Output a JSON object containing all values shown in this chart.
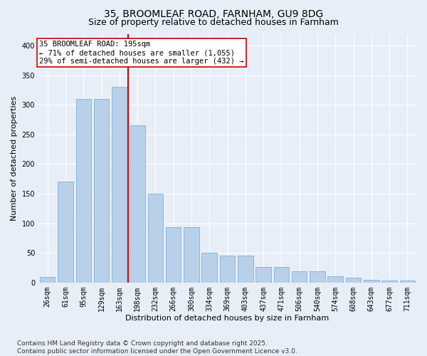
{
  "title1": "35, BROOMLEAF ROAD, FARNHAM, GU9 8DG",
  "title2": "Size of property relative to detached houses in Farnham",
  "xlabel": "Distribution of detached houses by size in Farnham",
  "ylabel": "Number of detached properties",
  "bar_color": "#b8d0e8",
  "bar_edge_color": "#6aaad4",
  "categories": [
    "26sqm",
    "61sqm",
    "95sqm",
    "129sqm",
    "163sqm",
    "198sqm",
    "232sqm",
    "266sqm",
    "300sqm",
    "334sqm",
    "369sqm",
    "403sqm",
    "437sqm",
    "471sqm",
    "506sqm",
    "540sqm",
    "574sqm",
    "608sqm",
    "643sqm",
    "677sqm",
    "711sqm"
  ],
  "values": [
    10,
    170,
    310,
    310,
    330,
    265,
    150,
    93,
    93,
    50,
    45,
    45,
    26,
    26,
    19,
    19,
    11,
    8,
    5,
    3,
    3
  ],
  "vline_index": 4.5,
  "vline_color": "#cc0000",
  "annotation_text": "35 BROOMLEAF ROAD: 195sqm\n← 71% of detached houses are smaller (1,055)\n29% of semi-detached houses are larger (432) →",
  "annotation_box_color": "#ffffff",
  "annotation_box_edge": "#cc0000",
  "background_color": "#e8eef7",
  "plot_bg_color": "#e8eef7",
  "grid_color": "#ffffff",
  "footer_text": "Contains HM Land Registry data © Crown copyright and database right 2025.\nContains public sector information licensed under the Open Government Licence v3.0.",
  "ylim": [
    0,
    420
  ],
  "yticks": [
    0,
    50,
    100,
    150,
    200,
    250,
    300,
    350,
    400
  ],
  "title_fontsize": 10,
  "subtitle_fontsize": 9,
  "axis_label_fontsize": 8,
  "tick_fontsize": 7,
  "annotation_fontsize": 7.5,
  "footer_fontsize": 6.5
}
